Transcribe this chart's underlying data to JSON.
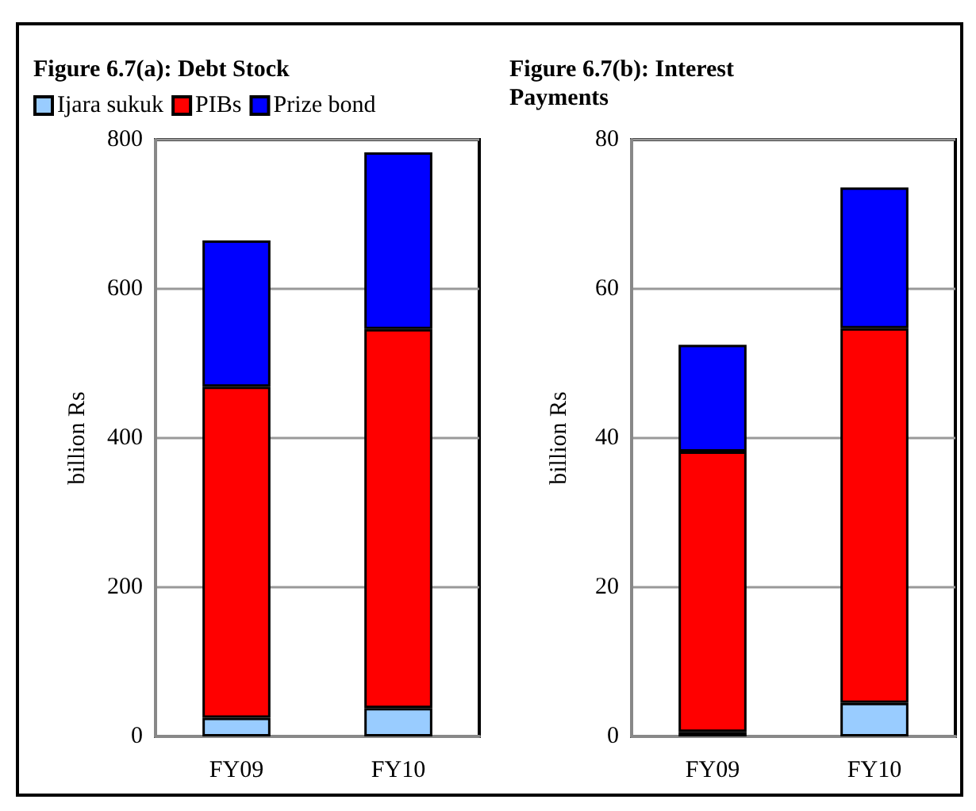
{
  "chart_data": [
    {
      "type": "bar",
      "title": "Figure 6.7(a): Debt Stock",
      "ylabel": "billion Rs",
      "categories": [
        "FY09",
        "FY10"
      ],
      "stacked": true,
      "legend": "top left",
      "grid": "y",
      "ylim": [
        0,
        800
      ],
      "yticks": [
        0,
        200,
        400,
        600,
        800
      ],
      "series": [
        {
          "name": "Ijara sukuk",
          "color": "#99ccff",
          "values": [
            25,
            38
          ]
        },
        {
          "name": "PIBs",
          "color": "#ff0000",
          "values": [
            444,
            508
          ]
        },
        {
          "name": "Prize bond",
          "color": "#0000ff",
          "values": [
            196,
            237
          ]
        }
      ]
    },
    {
      "type": "bar",
      "title": "Figure 6.7(b): Interest Payments",
      "ylabel": "billion Rs",
      "categories": [
        "FY09",
        "FY10"
      ],
      "stacked": true,
      "grid": "y",
      "ylim": [
        0,
        80
      ],
      "yticks": [
        0,
        20,
        40,
        60,
        80
      ],
      "series": [
        {
          "color": "#99ccff",
          "values": [
            0.6,
            4.5
          ]
        },
        {
          "color": "#ff0000",
          "values": [
            37.6,
            50.2
          ]
        },
        {
          "color": "#0000ff",
          "values": [
            14.3,
            18.9
          ]
        }
      ]
    }
  ]
}
